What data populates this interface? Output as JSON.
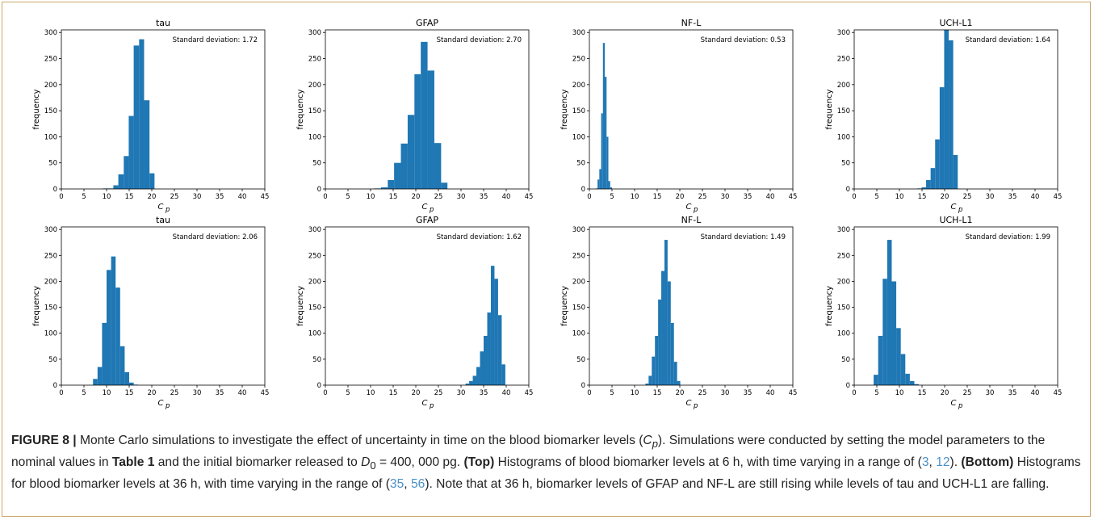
{
  "chart_data": [
    {
      "type": "bar",
      "row": "top",
      "title": "tau",
      "annotation": "Standard deviation: 1.72",
      "xlabel": "C",
      "xlabel_sub": "p",
      "ylabel": "frequency",
      "xlim": [
        0,
        45
      ],
      "ylim": [
        0,
        305
      ],
      "xticks": [
        0,
        5,
        10,
        15,
        20,
        25,
        30,
        35,
        40,
        45
      ],
      "yticks": [
        0,
        50,
        100,
        150,
        200,
        250,
        300
      ],
      "bins": [
        {
          "x0": 9.2,
          "x1": 10.3,
          "y": 1
        },
        {
          "x0": 10.3,
          "x1": 11.5,
          "y": 1
        },
        {
          "x0": 11.5,
          "x1": 12.6,
          "y": 7
        },
        {
          "x0": 12.6,
          "x1": 13.8,
          "y": 28
        },
        {
          "x0": 13.8,
          "x1": 14.9,
          "y": 63
        },
        {
          "x0": 14.9,
          "x1": 16.0,
          "y": 140
        },
        {
          "x0": 16.0,
          "x1": 17.2,
          "y": 275
        },
        {
          "x0": 17.2,
          "x1": 18.3,
          "y": 287
        },
        {
          "x0": 18.3,
          "x1": 19.5,
          "y": 170
        },
        {
          "x0": 19.5,
          "x1": 20.6,
          "y": 30
        }
      ]
    },
    {
      "type": "bar",
      "row": "top",
      "title": "GFAP",
      "annotation": "Standard deviation: 2.70",
      "xlabel": "C",
      "xlabel_sub": "p",
      "ylabel": "frequency",
      "xlim": [
        0,
        45
      ],
      "ylim": [
        0,
        305
      ],
      "xticks": [
        0,
        5,
        10,
        15,
        20,
        25,
        30,
        35,
        40,
        45
      ],
      "yticks": [
        0,
        50,
        100,
        150,
        200,
        250,
        300
      ],
      "bins": [
        {
          "x0": 10.8,
          "x1": 12.3,
          "y": 1
        },
        {
          "x0": 12.3,
          "x1": 13.8,
          "y": 3
        },
        {
          "x0": 13.8,
          "x1": 15.2,
          "y": 17
        },
        {
          "x0": 15.2,
          "x1": 16.7,
          "y": 50
        },
        {
          "x0": 16.7,
          "x1": 18.2,
          "y": 87
        },
        {
          "x0": 18.2,
          "x1": 19.7,
          "y": 142
        },
        {
          "x0": 19.7,
          "x1": 21.1,
          "y": 220
        },
        {
          "x0": 21.1,
          "x1": 22.6,
          "y": 282
        },
        {
          "x0": 22.6,
          "x1": 24.1,
          "y": 227
        },
        {
          "x0": 24.1,
          "x1": 25.6,
          "y": 88
        },
        {
          "x0": 25.6,
          "x1": 27.0,
          "y": 12
        }
      ]
    },
    {
      "type": "bar",
      "row": "top",
      "title": "NF-L",
      "annotation": "Standard deviation: 0.53",
      "xlabel": "C",
      "xlabel_sub": "p",
      "ylabel": "frequency",
      "xlim": [
        0,
        45
      ],
      "ylim": [
        0,
        305
      ],
      "xticks": [
        0,
        5,
        10,
        15,
        20,
        25,
        30,
        35,
        40,
        45
      ],
      "yticks": [
        0,
        50,
        100,
        150,
        200,
        250,
        300
      ],
      "bins": [
        {
          "x0": 1.4,
          "x1": 1.8,
          "y": 1
        },
        {
          "x0": 1.8,
          "x1": 2.2,
          "y": 18
        },
        {
          "x0": 2.2,
          "x1": 2.6,
          "y": 38
        },
        {
          "x0": 2.6,
          "x1": 3.0,
          "y": 145
        },
        {
          "x0": 3.0,
          "x1": 3.4,
          "y": 280
        },
        {
          "x0": 3.4,
          "x1": 3.8,
          "y": 215
        },
        {
          "x0": 3.8,
          "x1": 4.2,
          "y": 100
        },
        {
          "x0": 4.2,
          "x1": 4.6,
          "y": 15
        },
        {
          "x0": 4.6,
          "x1": 5.0,
          "y": 3
        }
      ]
    },
    {
      "type": "bar",
      "row": "top",
      "title": "UCH-L1",
      "annotation": "Standard deviation: 1.64",
      "xlabel": "C",
      "xlabel_sub": "p",
      "ylabel": "frequency",
      "xlim": [
        0,
        45
      ],
      "ylim": [
        0,
        305
      ],
      "xticks": [
        0,
        5,
        10,
        15,
        20,
        25,
        30,
        35,
        40,
        45
      ],
      "yticks": [
        0,
        50,
        100,
        150,
        200,
        250,
        300
      ],
      "bins": [
        {
          "x0": 13.9,
          "x1": 14.9,
          "y": 1
        },
        {
          "x0": 14.9,
          "x1": 15.9,
          "y": 3
        },
        {
          "x0": 15.9,
          "x1": 16.9,
          "y": 17
        },
        {
          "x0": 16.9,
          "x1": 17.9,
          "y": 40
        },
        {
          "x0": 17.9,
          "x1": 18.9,
          "y": 95
        },
        {
          "x0": 18.9,
          "x1": 19.9,
          "y": 195
        },
        {
          "x0": 19.9,
          "x1": 20.9,
          "y": 305
        },
        {
          "x0": 20.9,
          "x1": 21.9,
          "y": 285
        },
        {
          "x0": 21.9,
          "x1": 22.9,
          "y": 65
        }
      ]
    },
    {
      "type": "bar",
      "row": "bottom",
      "title": "tau",
      "annotation": "Standard deviation: 2.06",
      "xlabel": "C",
      "xlabel_sub": "p",
      "ylabel": "frequency",
      "xlim": [
        0,
        45
      ],
      "ylim": [
        0,
        305
      ],
      "xticks": [
        0,
        5,
        10,
        15,
        20,
        25,
        30,
        35,
        40,
        45
      ],
      "yticks": [
        0,
        50,
        100,
        150,
        200,
        250,
        300
      ],
      "bins": [
        {
          "x0": 7.0,
          "x1": 8.0,
          "y": 12
        },
        {
          "x0": 8.0,
          "x1": 9.0,
          "y": 35
        },
        {
          "x0": 9.0,
          "x1": 10.0,
          "y": 120
        },
        {
          "x0": 10.0,
          "x1": 11.0,
          "y": 222
        },
        {
          "x0": 11.0,
          "x1": 12.0,
          "y": 248
        },
        {
          "x0": 12.0,
          "x1": 13.0,
          "y": 188
        },
        {
          "x0": 13.0,
          "x1": 14.0,
          "y": 75
        },
        {
          "x0": 14.0,
          "x1": 15.0,
          "y": 25
        },
        {
          "x0": 15.0,
          "x1": 16.0,
          "y": 5
        },
        {
          "x0": 16.0,
          "x1": 17.0,
          "y": 1
        }
      ]
    },
    {
      "type": "bar",
      "row": "bottom",
      "title": "GFAP",
      "annotation": "Standard deviation: 1.62",
      "xlabel": "C",
      "xlabel_sub": "p",
      "ylabel": "frequency",
      "xlim": [
        0,
        45
      ],
      "ylim": [
        0,
        305
      ],
      "xticks": [
        0,
        5,
        10,
        15,
        20,
        25,
        30,
        35,
        40,
        45
      ],
      "yticks": [
        0,
        50,
        100,
        150,
        200,
        250,
        300
      ],
      "bins": [
        {
          "x0": 31.0,
          "x1": 31.8,
          "y": 3
        },
        {
          "x0": 31.8,
          "x1": 32.6,
          "y": 8
        },
        {
          "x0": 32.6,
          "x1": 33.4,
          "y": 18
        },
        {
          "x0": 33.4,
          "x1": 34.2,
          "y": 35
        },
        {
          "x0": 34.2,
          "x1": 35.0,
          "y": 65
        },
        {
          "x0": 35.0,
          "x1": 35.8,
          "y": 95
        },
        {
          "x0": 35.8,
          "x1": 36.6,
          "y": 140
        },
        {
          "x0": 36.6,
          "x1": 37.4,
          "y": 230
        },
        {
          "x0": 37.4,
          "x1": 38.2,
          "y": 205
        },
        {
          "x0": 38.2,
          "x1": 39.0,
          "y": 135
        },
        {
          "x0": 39.0,
          "x1": 39.8,
          "y": 40
        }
      ]
    },
    {
      "type": "bar",
      "row": "bottom",
      "title": "NF-L",
      "annotation": "Standard deviation: 1.49",
      "xlabel": "C",
      "xlabel_sub": "p",
      "ylabel": "frequency",
      "xlim": [
        0,
        45
      ],
      "ylim": [
        0,
        305
      ],
      "xticks": [
        0,
        5,
        10,
        15,
        20,
        25,
        30,
        35,
        40,
        45
      ],
      "yticks": [
        0,
        50,
        100,
        150,
        200,
        250,
        300
      ],
      "bins": [
        {
          "x0": 12.4,
          "x1": 13.1,
          "y": 3
        },
        {
          "x0": 13.1,
          "x1": 13.8,
          "y": 18
        },
        {
          "x0": 13.8,
          "x1": 14.5,
          "y": 55
        },
        {
          "x0": 14.5,
          "x1": 15.2,
          "y": 95
        },
        {
          "x0": 15.2,
          "x1": 15.9,
          "y": 165
        },
        {
          "x0": 15.9,
          "x1": 16.6,
          "y": 220
        },
        {
          "x0": 16.6,
          "x1": 17.3,
          "y": 280
        },
        {
          "x0": 17.3,
          "x1": 18.0,
          "y": 200
        },
        {
          "x0": 18.0,
          "x1": 18.7,
          "y": 120
        },
        {
          "x0": 18.7,
          "x1": 19.4,
          "y": 45
        },
        {
          "x0": 19.4,
          "x1": 20.1,
          "y": 8
        }
      ]
    },
    {
      "type": "bar",
      "row": "bottom",
      "title": "UCH-L1",
      "annotation": "Standard deviation: 1.99",
      "xlabel": "C",
      "xlabel_sub": "p",
      "ylabel": "frequency",
      "xlim": [
        0,
        45
      ],
      "ylim": [
        0,
        305
      ],
      "xticks": [
        0,
        5,
        10,
        15,
        20,
        25,
        30,
        35,
        40,
        45
      ],
      "yticks": [
        0,
        50,
        100,
        150,
        200,
        250,
        300
      ],
      "bins": [
        {
          "x0": 4.3,
          "x1": 5.3,
          "y": 20
        },
        {
          "x0": 5.3,
          "x1": 6.3,
          "y": 95
        },
        {
          "x0": 6.3,
          "x1": 7.3,
          "y": 205
        },
        {
          "x0": 7.3,
          "x1": 8.3,
          "y": 280
        },
        {
          "x0": 8.3,
          "x1": 9.3,
          "y": 200
        },
        {
          "x0": 9.3,
          "x1": 10.3,
          "y": 110
        },
        {
          "x0": 10.3,
          "x1": 11.3,
          "y": 60
        },
        {
          "x0": 11.3,
          "x1": 12.3,
          "y": 22
        },
        {
          "x0": 12.3,
          "x1": 13.3,
          "y": 8
        },
        {
          "x0": 13.3,
          "x1": 14.3,
          "y": 2
        }
      ]
    }
  ],
  "caption": {
    "label": "FIGURE 8 |",
    "text1": " Monte Carlo simulations to investigate the effect of uncertainty in time on the blood biomarker levels (",
    "cp_main": "C",
    "cp_sub": "p",
    "text2": "). Simulations were conducted by setting the model parameters to the nominal values in ",
    "table_ref": "Table 1",
    "text3": " and the initial biomarker released to ",
    "d0_main": "D",
    "d0_sub": "0",
    "text4": " = 400, 000 pg. ",
    "top_label": "(Top)",
    "text5": " Histograms of blood biomarker levels at 6 h, with time varying in a range of (",
    "ref3": "3",
    "sep1": ", ",
    "ref12": "12",
    "text6": "). ",
    "bottom_label": "(Bottom)",
    "text7": " Histograms for blood biomarker levels at 36 h, with time varying in the range of (",
    "ref35": "35",
    "sep2": ", ",
    "ref56": "56",
    "text8": "). Note that at 36 h, biomarker levels of GFAP and NF-L are still rising while levels of tau and UCH-L1 are falling."
  },
  "colors": {
    "bar": "#1f77b4",
    "axis": "#000000",
    "link": "#4a90c8",
    "border": "#c9a86a"
  }
}
